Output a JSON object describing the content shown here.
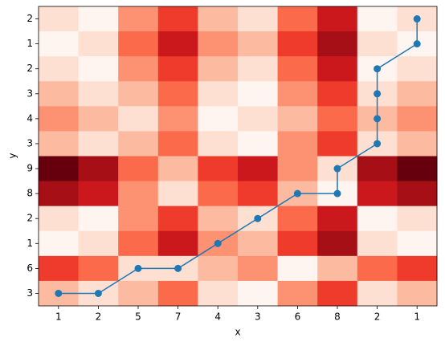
{
  "chart_data": {
    "type": "heatmap",
    "xlabel": "x",
    "ylabel": "y",
    "x_categories": [
      "1",
      "2",
      "5",
      "7",
      "4",
      "3",
      "6",
      "8",
      "2",
      "1"
    ],
    "y_categories": [
      "2",
      "1",
      "2",
      "3",
      "4",
      "3",
      "9",
      "8",
      "2",
      "1",
      "6",
      "3"
    ],
    "z": [
      [
        1,
        0,
        3,
        5,
        2,
        1,
        4,
        6,
        0,
        1
      ],
      [
        0,
        1,
        4,
        6,
        3,
        2,
        5,
        7,
        1,
        0
      ],
      [
        1,
        0,
        3,
        5,
        2,
        1,
        4,
        6,
        0,
        1
      ],
      [
        2,
        1,
        2,
        4,
        1,
        0,
        3,
        5,
        1,
        2
      ],
      [
        3,
        2,
        1,
        3,
        0,
        1,
        2,
        4,
        2,
        3
      ],
      [
        2,
        1,
        2,
        4,
        1,
        0,
        3,
        5,
        1,
        2
      ],
      [
        8,
        7,
        4,
        2,
        5,
        6,
        3,
        1,
        7,
        8
      ],
      [
        7,
        6,
        3,
        1,
        4,
        5,
        2,
        0,
        6,
        7
      ],
      [
        1,
        0,
        3,
        5,
        2,
        1,
        4,
        6,
        0,
        1
      ],
      [
        0,
        1,
        4,
        6,
        3,
        2,
        5,
        7,
        1,
        0
      ],
      [
        5,
        4,
        1,
        1,
        2,
        3,
        0,
        2,
        4,
        5
      ],
      [
        2,
        1,
        2,
        4,
        1,
        0,
        3,
        5,
        1,
        2
      ]
    ],
    "clim": [
      0,
      8
    ],
    "cmap": [
      "#fff5f0",
      "#fee0d2",
      "#fcbba1",
      "#fc9272",
      "#fb6a4a",
      "#ef3b2c",
      "#cb181d",
      "#a50f15",
      "#67000d"
    ],
    "path": {
      "color": "#1f77b4",
      "x": [
        0,
        1,
        2,
        3,
        4,
        5,
        6,
        7,
        7,
        8,
        8,
        8,
        8,
        9,
        9
      ],
      "y": [
        11,
        11,
        10,
        10,
        9,
        8,
        7,
        7,
        6,
        5,
        4,
        3,
        2,
        1,
        0
      ]
    }
  }
}
